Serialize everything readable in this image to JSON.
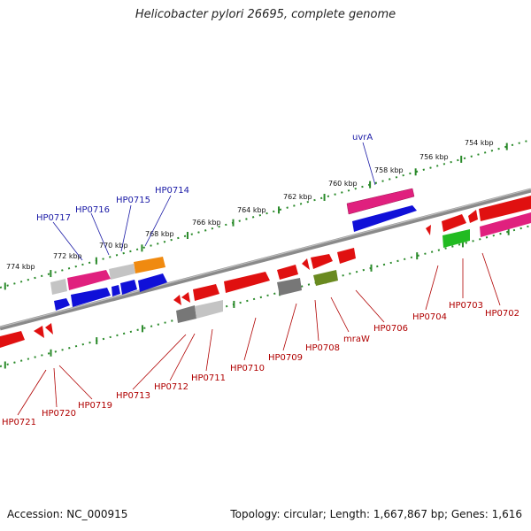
{
  "title": "Helicobacter pylori 26695, complete genome",
  "footer": {
    "accession": "Accession: NC_000915",
    "summary": "Topology: circular; Length: 1,667,867 bp; Genes: 1,616"
  },
  "colors": {
    "backbone": "#8a8a8a",
    "tick": "#2a8a2a",
    "label_top": "#1a1aa6",
    "label_bottom": "#b00000",
    "red": "#e01010",
    "pink": "#e0207e",
    "blue": "#1010d8",
    "grey": "#777777",
    "lightgrey": "#c4c4c4",
    "orange": "#f08a10",
    "green": "#22bb22",
    "olive": "#6a8a20"
  },
  "kbp_labels": [
    "754 kbp",
    "756 kbp",
    "758 kbp",
    "760 kbp",
    "762 kbp",
    "764 kbp",
    "766 kbp",
    "768 kbp",
    "770 kbp",
    "772 kbp",
    "774 kbp"
  ],
  "gene_labels_top": [
    "uvrA",
    "HP0714",
    "HP0715",
    "HP0716",
    "HP0717"
  ],
  "gene_labels_bottom": [
    "HP0702",
    "HP0703",
    "HP0704",
    "HP0706",
    "mraW",
    "HP0708",
    "HP0709",
    "HP0710",
    "HP0711",
    "HP0712",
    "HP0713",
    "HP0719",
    "HP0720",
    "HP0721"
  ]
}
